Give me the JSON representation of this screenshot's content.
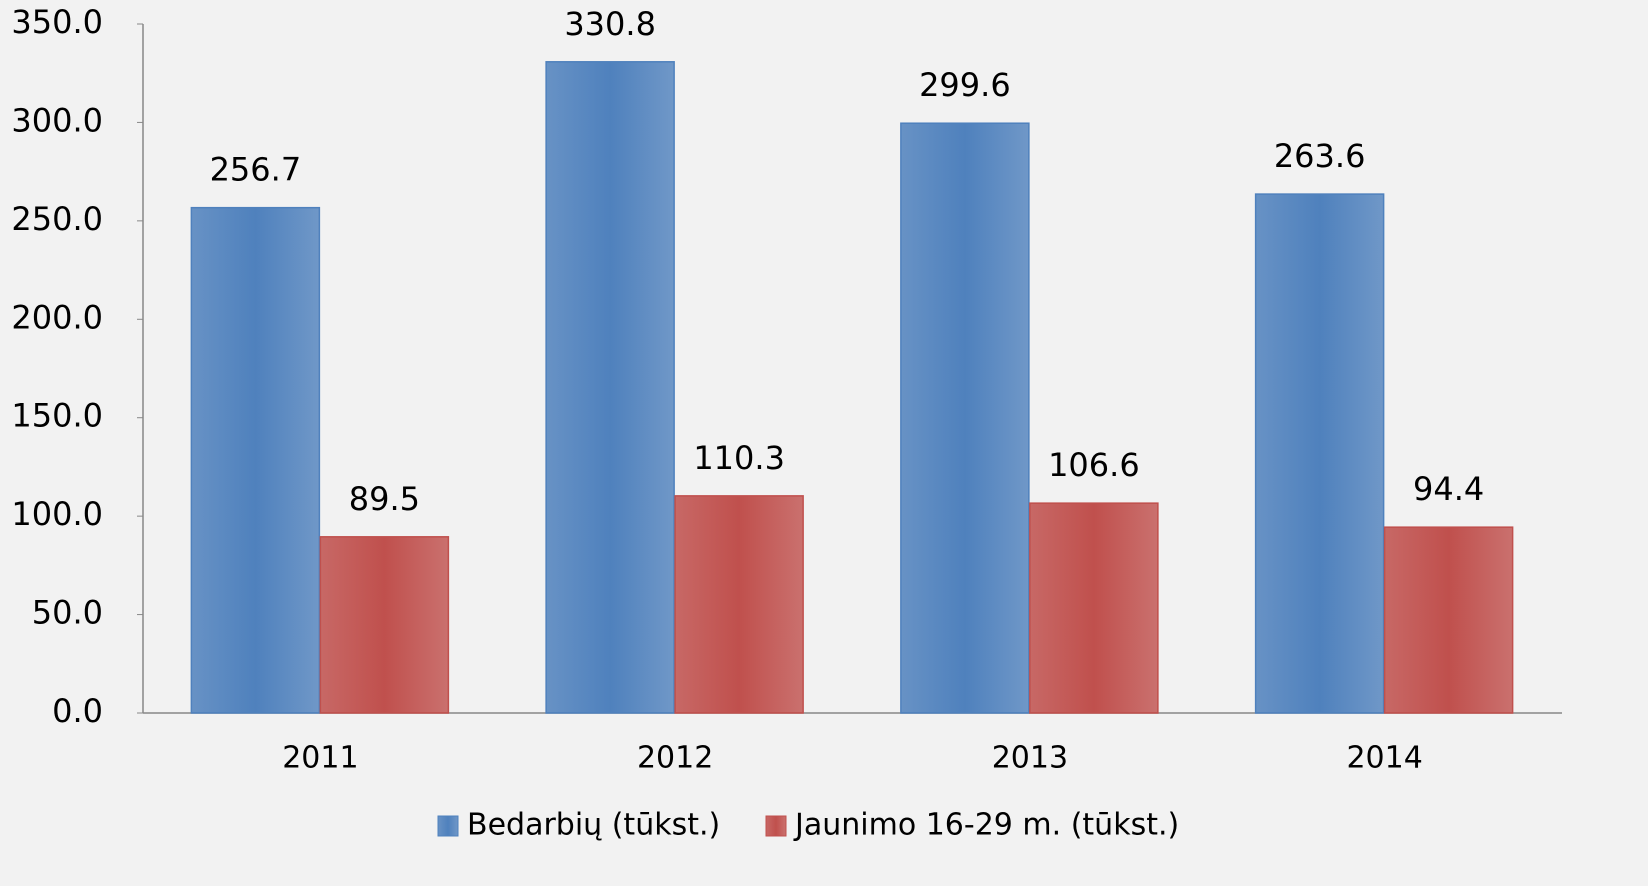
{
  "chart_data": {
    "type": "bar",
    "categories": [
      "2011",
      "2012",
      "2013",
      "2014"
    ],
    "series": [
      {
        "name": "Bedarbių (tūkst.)",
        "color": "#4f81bd",
        "values": [
          256.7,
          330.8,
          299.6,
          263.6
        ]
      },
      {
        "name": "Jaunimo 16-29 m. (tūkst.)",
        "color": "#c0504d",
        "values": [
          89.5,
          110.3,
          106.6,
          94.4
        ]
      }
    ],
    "ylim": [
      0,
      350
    ],
    "yticks": [
      {
        "value": 0,
        "label": "0.0"
      },
      {
        "value": 50,
        "label": "50.0"
      },
      {
        "value": 100,
        "label": "100.0"
      },
      {
        "value": 150,
        "label": "150.0"
      },
      {
        "value": 200,
        "label": "200.0"
      },
      {
        "value": 250,
        "label": "250.0"
      },
      {
        "value": 300,
        "label": "300.0"
      },
      {
        "value": 350,
        "label": "350.0"
      }
    ],
    "grid": false,
    "legend": "bottom"
  }
}
